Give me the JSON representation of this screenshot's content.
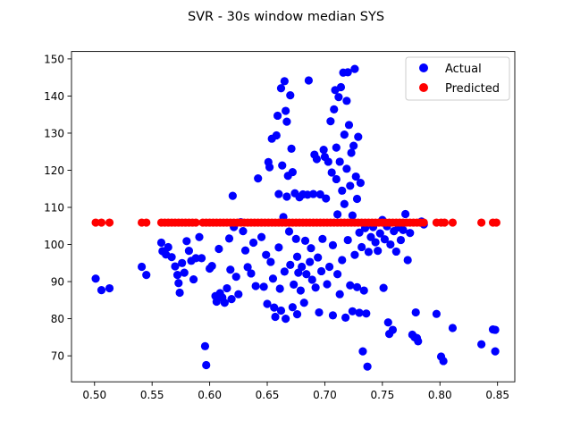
{
  "chart_data": {
    "type": "scatter",
    "title": "SVR - 30s window median SYS",
    "xlabel": "",
    "ylabel": "",
    "xlim": [
      0.48,
      0.865
    ],
    "ylim": [
      63,
      152
    ],
    "xticks": [
      "0.50",
      "0.55",
      "0.60",
      "0.65",
      "0.70",
      "0.75",
      "0.80",
      "0.85"
    ],
    "xtick_values": [
      0.5,
      0.55,
      0.6,
      0.65,
      0.7,
      0.75,
      0.8,
      0.85
    ],
    "yticks": [
      "70",
      "80",
      "90",
      "100",
      "110",
      "120",
      "130",
      "140",
      "150"
    ],
    "ytick_values": [
      70,
      80,
      90,
      100,
      110,
      120,
      130,
      140,
      150
    ],
    "grid": false,
    "legend_position": "top-right",
    "series": [
      {
        "name": "Actual",
        "color": "#0000ff",
        "points": [
          [
            0.501,
            90.8
          ],
          [
            0.506,
            87.7
          ],
          [
            0.513,
            88.2
          ],
          [
            0.541,
            94.0
          ],
          [
            0.545,
            91.8
          ],
          [
            0.558,
            100.5
          ],
          [
            0.559,
            98.2
          ],
          [
            0.562,
            97.3
          ],
          [
            0.564,
            99.3
          ],
          [
            0.567,
            96.6
          ],
          [
            0.57,
            94.1
          ],
          [
            0.572,
            91.8
          ],
          [
            0.573,
            89.6
          ],
          [
            0.574,
            87.0
          ],
          [
            0.576,
            95.0
          ],
          [
            0.578,
            92.4
          ],
          [
            0.58,
            100.9
          ],
          [
            0.582,
            98.3
          ],
          [
            0.584,
            95.6
          ],
          [
            0.586,
            90.6
          ],
          [
            0.588,
            96.3
          ],
          [
            0.591,
            102.0
          ],
          [
            0.593,
            96.3
          ],
          [
            0.596,
            72.6
          ],
          [
            0.597,
            67.5
          ],
          [
            0.6,
            93.5
          ],
          [
            0.602,
            94.2
          ],
          [
            0.605,
            86.1
          ],
          [
            0.606,
            84.6
          ],
          [
            0.608,
            98.8
          ],
          [
            0.609,
            86.9
          ],
          [
            0.611,
            85.7
          ],
          [
            0.613,
            84.3
          ],
          [
            0.615,
            88.2
          ],
          [
            0.617,
            101.6
          ],
          [
            0.618,
            93.2
          ],
          [
            0.619,
            85.3
          ],
          [
            0.62,
            113.1
          ],
          [
            0.621,
            104.7
          ],
          [
            0.623,
            91.3
          ],
          [
            0.625,
            86.6
          ],
          [
            0.627,
            106.0
          ],
          [
            0.629,
            103.6
          ],
          [
            0.631,
            98.4
          ],
          [
            0.633,
            93.9
          ],
          [
            0.636,
            92.2
          ],
          [
            0.638,
            100.5
          ],
          [
            0.64,
            88.8
          ],
          [
            0.642,
            117.8
          ],
          [
            0.645,
            102.0
          ],
          [
            0.647,
            88.6
          ],
          [
            0.649,
            97.2
          ],
          [
            0.65,
            84.0
          ],
          [
            0.651,
            122.2
          ],
          [
            0.652,
            120.8
          ],
          [
            0.653,
            95.3
          ],
          [
            0.654,
            128.5
          ],
          [
            0.655,
            90.8
          ],
          [
            0.656,
            83.0
          ],
          [
            0.657,
            80.5
          ],
          [
            0.658,
            129.4
          ],
          [
            0.659,
            134.7
          ],
          [
            0.66,
            113.6
          ],
          [
            0.66,
            99.2
          ],
          [
            0.661,
            88.1
          ],
          [
            0.662,
            142.1
          ],
          [
            0.662,
            82.2
          ],
          [
            0.663,
            121.3
          ],
          [
            0.664,
            107.4
          ],
          [
            0.665,
            144.0
          ],
          [
            0.665,
            92.7
          ],
          [
            0.666,
            136.0
          ],
          [
            0.666,
            80.0
          ],
          [
            0.667,
            133.1
          ],
          [
            0.667,
            112.9
          ],
          [
            0.668,
            118.5
          ],
          [
            0.669,
            103.5
          ],
          [
            0.67,
            140.2
          ],
          [
            0.67,
            94.5
          ],
          [
            0.671,
            125.8
          ],
          [
            0.672,
            83.1
          ],
          [
            0.672,
            119.5
          ],
          [
            0.673,
            89.2
          ],
          [
            0.674,
            113.8
          ],
          [
            0.675,
            101.5
          ],
          [
            0.676,
            96.7
          ],
          [
            0.676,
            81.2
          ],
          [
            0.677,
            92.4
          ],
          [
            0.678,
            112.7
          ],
          [
            0.679,
            87.6
          ],
          [
            0.68,
            94.0
          ],
          [
            0.681,
            113.5
          ],
          [
            0.682,
            84.3
          ],
          [
            0.683,
            101.0
          ],
          [
            0.684,
            92.0
          ],
          [
            0.685,
            113.4
          ],
          [
            0.686,
            144.2
          ],
          [
            0.687,
            95.3
          ],
          [
            0.688,
            99.0
          ],
          [
            0.689,
            90.5
          ],
          [
            0.69,
            113.6
          ],
          [
            0.691,
            124.2
          ],
          [
            0.692,
            88.4
          ],
          [
            0.693,
            123.0
          ],
          [
            0.694,
            96.5
          ],
          [
            0.695,
            81.7
          ],
          [
            0.696,
            113.5
          ],
          [
            0.697,
            92.8
          ],
          [
            0.698,
            101.5
          ],
          [
            0.699,
            125.5
          ],
          [
            0.7,
            123.6
          ],
          [
            0.701,
            112.4
          ],
          [
            0.702,
            89.3
          ],
          [
            0.703,
            122.3
          ],
          [
            0.704,
            94.0
          ],
          [
            0.705,
            133.2
          ],
          [
            0.706,
            119.4
          ],
          [
            0.707,
            99.8
          ],
          [
            0.707,
            80.9
          ],
          [
            0.708,
            136.4
          ],
          [
            0.709,
            141.6
          ],
          [
            0.71,
            126.1
          ],
          [
            0.71,
            117.6
          ],
          [
            0.711,
            108.1
          ],
          [
            0.711,
            92.0
          ],
          [
            0.712,
            139.7
          ],
          [
            0.713,
            122.3
          ],
          [
            0.713,
            86.6
          ],
          [
            0.714,
            142.4
          ],
          [
            0.715,
            114.5
          ],
          [
            0.715,
            95.8
          ],
          [
            0.716,
            146.3
          ],
          [
            0.717,
            129.6
          ],
          [
            0.717,
            110.9
          ],
          [
            0.718,
            80.3
          ],
          [
            0.719,
            138.7
          ],
          [
            0.719,
            120.4
          ],
          [
            0.72,
            146.4
          ],
          [
            0.72,
            101.2
          ],
          [
            0.721,
            132.2
          ],
          [
            0.722,
            115.8
          ],
          [
            0.722,
            89.0
          ],
          [
            0.723,
            124.7
          ],
          [
            0.724,
            107.8
          ],
          [
            0.724,
            82.0
          ],
          [
            0.725,
            126.6
          ],
          [
            0.726,
            147.3
          ],
          [
            0.726,
            97.2
          ],
          [
            0.727,
            118.3
          ],
          [
            0.728,
            112.3
          ],
          [
            0.728,
            88.5
          ],
          [
            0.729,
            129.0
          ],
          [
            0.73,
            103.2
          ],
          [
            0.73,
            81.6
          ],
          [
            0.731,
            116.6
          ],
          [
            0.732,
            99.3
          ],
          [
            0.733,
            71.2
          ],
          [
            0.734,
            87.6
          ],
          [
            0.735,
            104.4
          ],
          [
            0.736,
            81.4
          ],
          [
            0.737,
            67.1
          ],
          [
            0.738,
            98.0
          ],
          [
            0.74,
            102.0
          ],
          [
            0.742,
            104.7
          ],
          [
            0.744,
            100.6
          ],
          [
            0.746,
            98.3
          ],
          [
            0.748,
            103.0
          ],
          [
            0.75,
            106.6
          ],
          [
            0.751,
            88.3
          ],
          [
            0.752,
            101.4
          ],
          [
            0.754,
            104.9
          ],
          [
            0.755,
            79.0
          ],
          [
            0.756,
            75.9
          ],
          [
            0.757,
            100.0
          ],
          [
            0.759,
            77.0
          ],
          [
            0.76,
            103.6
          ],
          [
            0.762,
            98.1
          ],
          [
            0.764,
            104.6
          ],
          [
            0.766,
            101.2
          ],
          [
            0.768,
            103.9
          ],
          [
            0.77,
            108.2
          ],
          [
            0.772,
            95.8
          ],
          [
            0.774,
            103.1
          ],
          [
            0.776,
            75.7
          ],
          [
            0.778,
            75.0
          ],
          [
            0.779,
            81.7
          ],
          [
            0.78,
            74.8
          ],
          [
            0.781,
            73.9
          ],
          [
            0.784,
            106.2
          ],
          [
            0.786,
            105.4
          ],
          [
            0.797,
            81.3
          ],
          [
            0.801,
            69.8
          ],
          [
            0.803,
            68.6
          ],
          [
            0.811,
            77.5
          ],
          [
            0.836,
            73.1
          ],
          [
            0.846,
            77.1
          ],
          [
            0.848,
            71.2
          ],
          [
            0.848,
            77.0
          ]
        ]
      },
      {
        "name": "Predicted",
        "color": "#ff0000",
        "y_constant": 105.9,
        "x": [
          0.501,
          0.506,
          0.513,
          0.541,
          0.545,
          0.558,
          0.561,
          0.564,
          0.567,
          0.57,
          0.573,
          0.576,
          0.579,
          0.582,
          0.585,
          0.588,
          0.594,
          0.597,
          0.6,
          0.603,
          0.606,
          0.609,
          0.612,
          0.615,
          0.618,
          0.621,
          0.624,
          0.627,
          0.63,
          0.633,
          0.636,
          0.639,
          0.642,
          0.645,
          0.648,
          0.651,
          0.654,
          0.657,
          0.66,
          0.663,
          0.666,
          0.669,
          0.672,
          0.675,
          0.678,
          0.681,
          0.684,
          0.687,
          0.69,
          0.693,
          0.696,
          0.699,
          0.702,
          0.705,
          0.708,
          0.711,
          0.714,
          0.717,
          0.72,
          0.723,
          0.726,
          0.729,
          0.732,
          0.735,
          0.738,
          0.741,
          0.744,
          0.747,
          0.75,
          0.753,
          0.756,
          0.759,
          0.762,
          0.765,
          0.768,
          0.771,
          0.774,
          0.777,
          0.78,
          0.783,
          0.786,
          0.797,
          0.801,
          0.804,
          0.811,
          0.836,
          0.846,
          0.849
        ]
      }
    ]
  }
}
